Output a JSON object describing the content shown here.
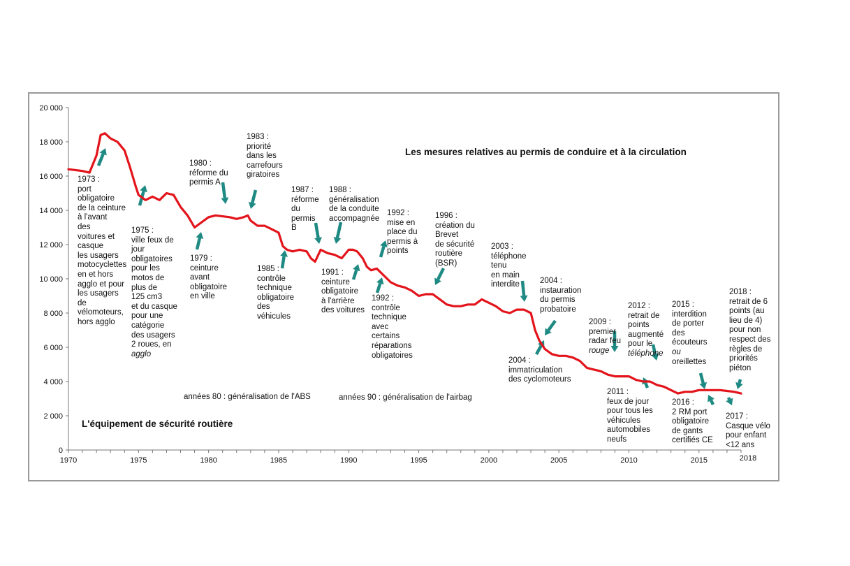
{
  "colors": {
    "line": "#e3141b",
    "arrow": "#1f8a83",
    "frame": "#999999",
    "axis": "#777777"
  },
  "chart_data": {
    "type": "line",
    "title": "",
    "xlabel": "",
    "ylabel": "",
    "xlim": [
      1970,
      2018
    ],
    "ylim": [
      0,
      20000
    ],
    "y_ticks": [
      "0",
      "2 000",
      "4 000",
      "6 000",
      "8 000",
      "10 000",
      "12 000",
      "14 000",
      "16 000",
      "18 000",
      "20 000"
    ],
    "x_ticks": [
      "1970",
      "1975",
      "1980",
      "1985",
      "1990",
      "1995",
      "2000",
      "2005",
      "2010",
      "2015"
    ],
    "x_end_label": "2018",
    "grid": false,
    "series": [
      {
        "x": [
          1970,
          1971,
          1971.5,
          1972,
          1972.3,
          1972.6,
          1973,
          1973.5,
          1974,
          1974.4,
          1974.8,
          1975,
          1975.5,
          1976,
          1976.5,
          1977,
          1977.5,
          1978,
          1978.5,
          1979,
          1979.5,
          1980,
          1980.5,
          1981,
          1981.5,
          1982,
          1982.5,
          1982.8,
          1983,
          1983.5,
          1984,
          1984.5,
          1985,
          1985.3,
          1985.6,
          1986,
          1986.5,
          1987,
          1987.3,
          1987.6,
          1988,
          1988.5,
          1989,
          1989.5,
          1990,
          1990.3,
          1990.6,
          1991,
          1991.3,
          1991.6,
          1992,
          1992.5,
          1993,
          1993.5,
          1994,
          1994.5,
          1995,
          1995.5,
          1996,
          1996.5,
          1997,
          1997.5,
          1998,
          1998.5,
          1999,
          1999.5,
          2000,
          2000.5,
          2001,
          2001.5,
          2002,
          2002.5,
          2003,
          2003.3,
          2003.6,
          2004,
          2004.5,
          2005,
          2005.5,
          2006,
          2006.5,
          2007,
          2007.5,
          2008,
          2008.5,
          2009,
          2009.5,
          2010,
          2010.5,
          2011,
          2011.5,
          2012,
          2012.5,
          2013,
          2013.5,
          2014,
          2014.5,
          2015,
          2015.5,
          2016,
          2016.5,
          2017,
          2017.5,
          2018
        ],
        "y": [
          16400,
          16300,
          16200,
          17200,
          18400,
          18500,
          18200,
          18000,
          17500,
          16500,
          15400,
          14900,
          14600,
          14800,
          14600,
          15000,
          14900,
          14200,
          13700,
          13000,
          13300,
          13600,
          13700,
          13650,
          13600,
          13500,
          13600,
          13700,
          13400,
          13100,
          13100,
          12900,
          12700,
          11900,
          11700,
          11600,
          11700,
          11600,
          11200,
          11000,
          11700,
          11500,
          11400,
          11200,
          11700,
          11700,
          11600,
          11200,
          10700,
          10500,
          10600,
          10200,
          9800,
          9600,
          9500,
          9300,
          9000,
          9100,
          9100,
          8800,
          8500,
          8400,
          8400,
          8500,
          8500,
          8800,
          8600,
          8400,
          8100,
          8000,
          8200,
          8200,
          8000,
          7000,
          6400,
          5900,
          5600,
          5500,
          5500,
          5400,
          5200,
          4800,
          4700,
          4600,
          4400,
          4300,
          4300,
          4300,
          4100,
          4000,
          4000,
          3800,
          3700,
          3500,
          3300,
          3400,
          3400,
          3500,
          3500,
          3500,
          3500,
          3450,
          3400,
          3300
        ]
      }
    ]
  },
  "headers": {
    "permis": "Les mesures relatives au permis de conduire et à la circulation",
    "equipement": "L'équipement de sécurité routière",
    "abs": "années 80 : généralisation de l'ABS",
    "airbag": "années 90 : généralisation de l'airbag"
  },
  "annotations": {
    "a1973": "1973 :\nport\nobligatoire\nde la ceinture\nà l'avant\ndes\nvoitures et\ncasque\nles usagers\nmotocyclettes\nen et hors\nagglo et pour\nles usagers\nde\nvélomoteurs,\nhors agglo",
    "a1975_main": "1975 :\nville feux de\njour\nobligatoires\npour les\nmotos de\nplus de\n125 cm3\net du casque\npour une\ncatégorie\ndes usagers\n2 roues, en",
    "a1975_agglo": "agglo",
    "a1979": "1979 :\nceinture\navant\nobligatoire\nen ville",
    "a1980": "1980 :\nréforme du\npermis A",
    "a1983": "1983 :\npriorité\ndans les\ncarrefours\ngiratoires",
    "a1985": "1985 :\ncontrôle\ntechnique\nobligatoire\ndes\nvéhicules",
    "a1987": "1987 :\nréforme\ndu\npermis\nB",
    "a1988": "1988 :\ngénéralisation\nde la conduite\naccompagnée",
    "a1991": "1991 :\nceinture\nobligatoire\nà l'arrière\ndes voitures",
    "a1992a": "1992 :\nmise en\nplace du\npermis à\npoints",
    "a1992b": "1992 :\ncontrôle\ntechnique\navec\ncertains\nréparations\nobligatoires",
    "a1996": "1996 :\ncréation du\nBrevet\nde sécurité\nroutière\n(BSR)",
    "a2003": "2003 :\ntéléphone\ntenu\nen main\ninterdite",
    "a2004a": "2004 :\ninstauration\ndu permis\nprobatoire",
    "a2004b": "2004 :\nimmatriculation\ndes cyclomoteurs",
    "a2009_main": "2009 :\npremier\nradar feu",
    "a2009_rouge": "rouge",
    "a2011": "2011 :\nfeux de jour\npour tous les\nvéhicules\nautomobiles\nneufs",
    "a2012_main": "2012 :\nretrait de\npoints\naugmenté\npour le",
    "a2012_tel": "téléphone",
    "a2015_main": "2015 :\ninterdition\nde porter\ndes\nécouteurs",
    "a2015_ou": "ou",
    "a2015_end": "oreillettes",
    "a2016": "2016 :\n2 RM port\nobligatoire\nde gants\ncertifiés CE",
    "a2017": "2017 :\nCasque vélo\npour enfant\n<12 ans",
    "a2018": "2018 :\nretrait de 6\npoints (au\nlieu de 4)\npour non\nrespect des\nrègles de\npriorités\npiéton"
  }
}
